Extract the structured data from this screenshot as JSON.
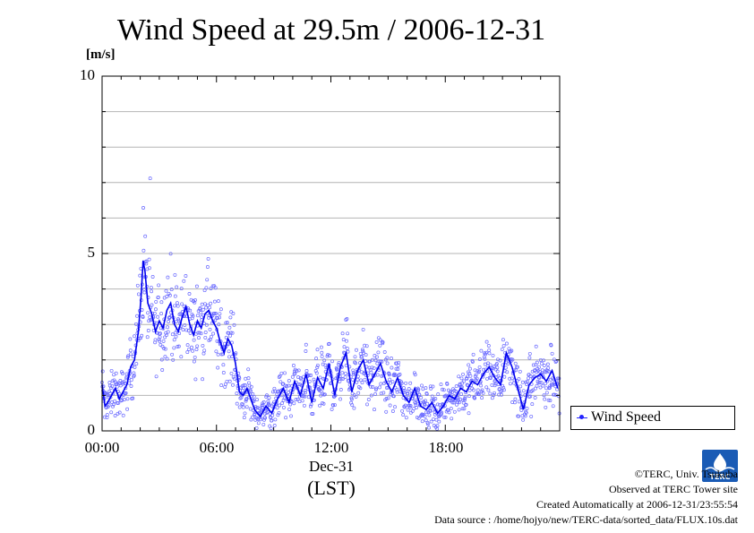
{
  "title": "Wind Speed at 29.5m / 2006-12-31",
  "unit": "[m/s]",
  "legend_label": "Wind Speed",
  "x_date_label": "Dec-31",
  "x_zone_label": "(LST)",
  "footer": {
    "copyright": "©TERC, Univ. Tsukuba",
    "observed": "Observed at TERC Tower site",
    "created": "Created Automatically at 2006-12-31/23:55:54",
    "source": "Data source : /home/hojyo/new/TERC-data/sorted_data/FLUX.10s.dat"
  },
  "logo_text": "TERC",
  "colors": {
    "line": "#0000ee",
    "points": "#6a6aff",
    "grid": "#b4b4b4",
    "axis": "#000000"
  },
  "chart_data": {
    "type": "line",
    "title": "Wind Speed at 29.5m / 2006-12-31",
    "ylabel": "[m/s]",
    "xlabel": "Dec-31 (LST)",
    "ylim": [
      0,
      10
    ],
    "xlim_hours": [
      0,
      24
    ],
    "yticks": [
      {
        "value": 0,
        "label": "0"
      },
      {
        "value": 5,
        "label": "5"
      },
      {
        "value": 10,
        "label": "10"
      }
    ],
    "xticks": [
      {
        "value": 0,
        "label": "00:00"
      },
      {
        "value": 6,
        "label": "06:00"
      },
      {
        "value": 12,
        "label": "12:00"
      },
      {
        "value": 18,
        "label": "18:00"
      }
    ],
    "grid": true,
    "legend_position": "right",
    "series": [
      {
        "name": "Wind Speed",
        "x_hours": [
          0,
          0.15,
          0.3,
          0.5,
          0.7,
          0.9,
          1.1,
          1.3,
          1.5,
          1.7,
          1.9,
          2.05,
          2.15,
          2.25,
          2.4,
          2.6,
          2.8,
          3.0,
          3.2,
          3.4,
          3.6,
          3.8,
          4.0,
          4.2,
          4.4,
          4.6,
          4.8,
          5.0,
          5.2,
          5.4,
          5.6,
          5.8,
          6.0,
          6.2,
          6.4,
          6.6,
          6.8,
          7.0,
          7.2,
          7.4,
          7.6,
          7.8,
          8.0,
          8.3,
          8.6,
          8.9,
          9.2,
          9.5,
          9.8,
          10.1,
          10.4,
          10.7,
          11.0,
          11.3,
          11.6,
          11.9,
          12.2,
          12.5,
          12.8,
          13.1,
          13.4,
          13.7,
          14.0,
          14.3,
          14.6,
          14.9,
          15.2,
          15.5,
          15.8,
          16.1,
          16.4,
          16.7,
          17.0,
          17.3,
          17.6,
          17.9,
          18.2,
          18.5,
          18.8,
          19.1,
          19.4,
          19.7,
          20.0,
          20.3,
          20.6,
          20.9,
          21.2,
          21.5,
          21.8,
          22.1,
          22.4,
          22.7,
          23.0,
          23.3,
          23.6,
          23.9
        ],
        "values": [
          1.3,
          0.7,
          0.8,
          1.0,
          1.2,
          0.9,
          1.1,
          1.3,
          1.8,
          2.0,
          2.8,
          3.8,
          4.8,
          4.5,
          3.6,
          3.3,
          2.8,
          3.1,
          2.9,
          3.4,
          3.6,
          3.0,
          2.8,
          3.2,
          3.5,
          3.0,
          2.7,
          3.1,
          2.9,
          3.3,
          3.4,
          3.1,
          2.9,
          2.5,
          2.2,
          2.6,
          2.4,
          1.9,
          1.1,
          1.0,
          1.2,
          0.9,
          0.6,
          0.4,
          0.7,
          0.5,
          0.9,
          1.2,
          0.8,
          1.4,
          1.0,
          1.6,
          0.8,
          1.5,
          1.2,
          1.9,
          1.0,
          1.8,
          2.2,
          1.1,
          1.7,
          2.0,
          1.3,
          1.6,
          1.9,
          1.4,
          1.1,
          1.5,
          1.0,
          0.8,
          1.2,
          0.7,
          0.6,
          0.8,
          0.5,
          0.7,
          1.0,
          0.9,
          1.2,
          1.1,
          1.4,
          1.3,
          1.6,
          1.8,
          1.5,
          1.3,
          2.2,
          1.8,
          1.2,
          0.6,
          1.3,
          1.5,
          1.6,
          1.4,
          1.7,
          1.2
        ]
      }
    ]
  }
}
